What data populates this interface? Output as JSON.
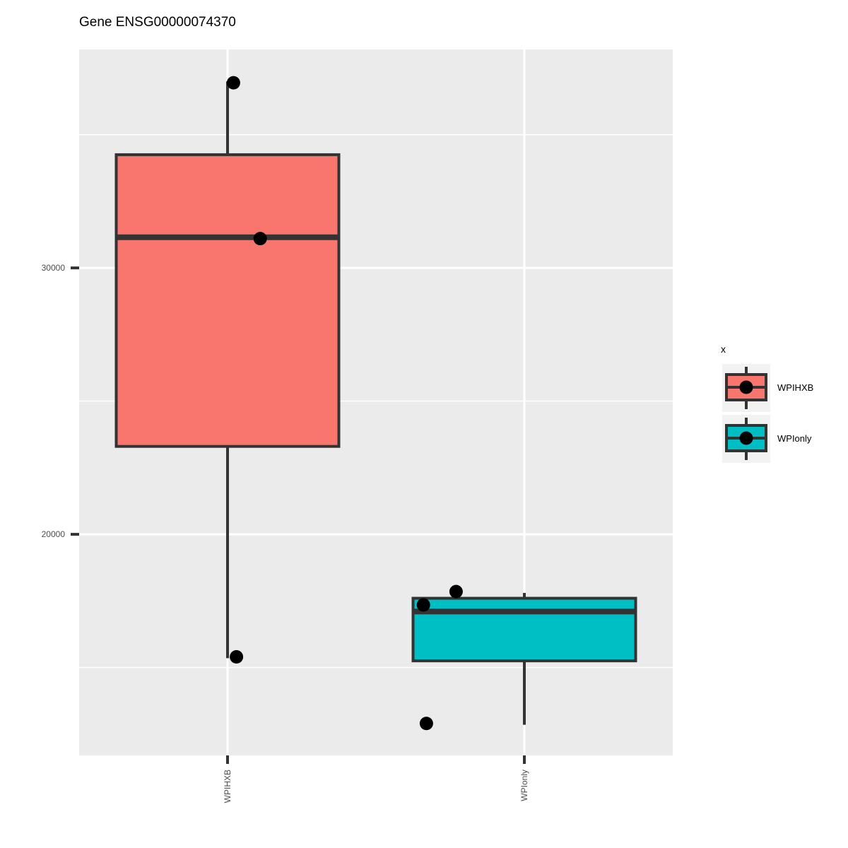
{
  "chart_data": {
    "type": "box",
    "title": "Gene ENSG00000074370",
    "xlabel": "",
    "ylabel": "",
    "categories": [
      "WPIHXB",
      "WPIonly"
    ],
    "ylim": [
      11700,
      38200
    ],
    "y_ticks": [
      20000,
      30000
    ],
    "y_tick_labels": [
      "20000",
      "30000"
    ],
    "y_minor_gridlines": [
      15000,
      25000,
      35000
    ],
    "grid": true,
    "legend": {
      "title": "x",
      "position": "right",
      "entries": [
        "WPIHXB",
        "WPIonly"
      ]
    },
    "colors": {
      "WPIHXB": "#F8766D",
      "WPIonly": "#00BFC4",
      "panel": "#EBEBEB",
      "outline": "#333333",
      "points": "#000000"
    },
    "boxes": [
      {
        "category": "WPIHXB",
        "whisker_low": 15350,
        "q1": 23300,
        "median": 31150,
        "q3": 34250,
        "whisker_high": 37000
      },
      {
        "category": "WPIonly",
        "whisker_low": 12850,
        "q1": 15250,
        "median": 17100,
        "q3": 17600,
        "whisker_high": 17800
      }
    ],
    "points": [
      {
        "category": "WPIHXB",
        "jitter": 0.02,
        "y": 36950
      },
      {
        "category": "WPIHXB",
        "jitter": 0.11,
        "y": 31100
      },
      {
        "category": "WPIHXB",
        "jitter": 0.03,
        "y": 15400
      },
      {
        "category": "WPIonly",
        "jitter": -0.34,
        "y": 17350
      },
      {
        "category": "WPIonly",
        "jitter": -0.23,
        "y": 17850
      },
      {
        "category": "WPIonly",
        "jitter": -0.33,
        "y": 12900
      }
    ]
  }
}
